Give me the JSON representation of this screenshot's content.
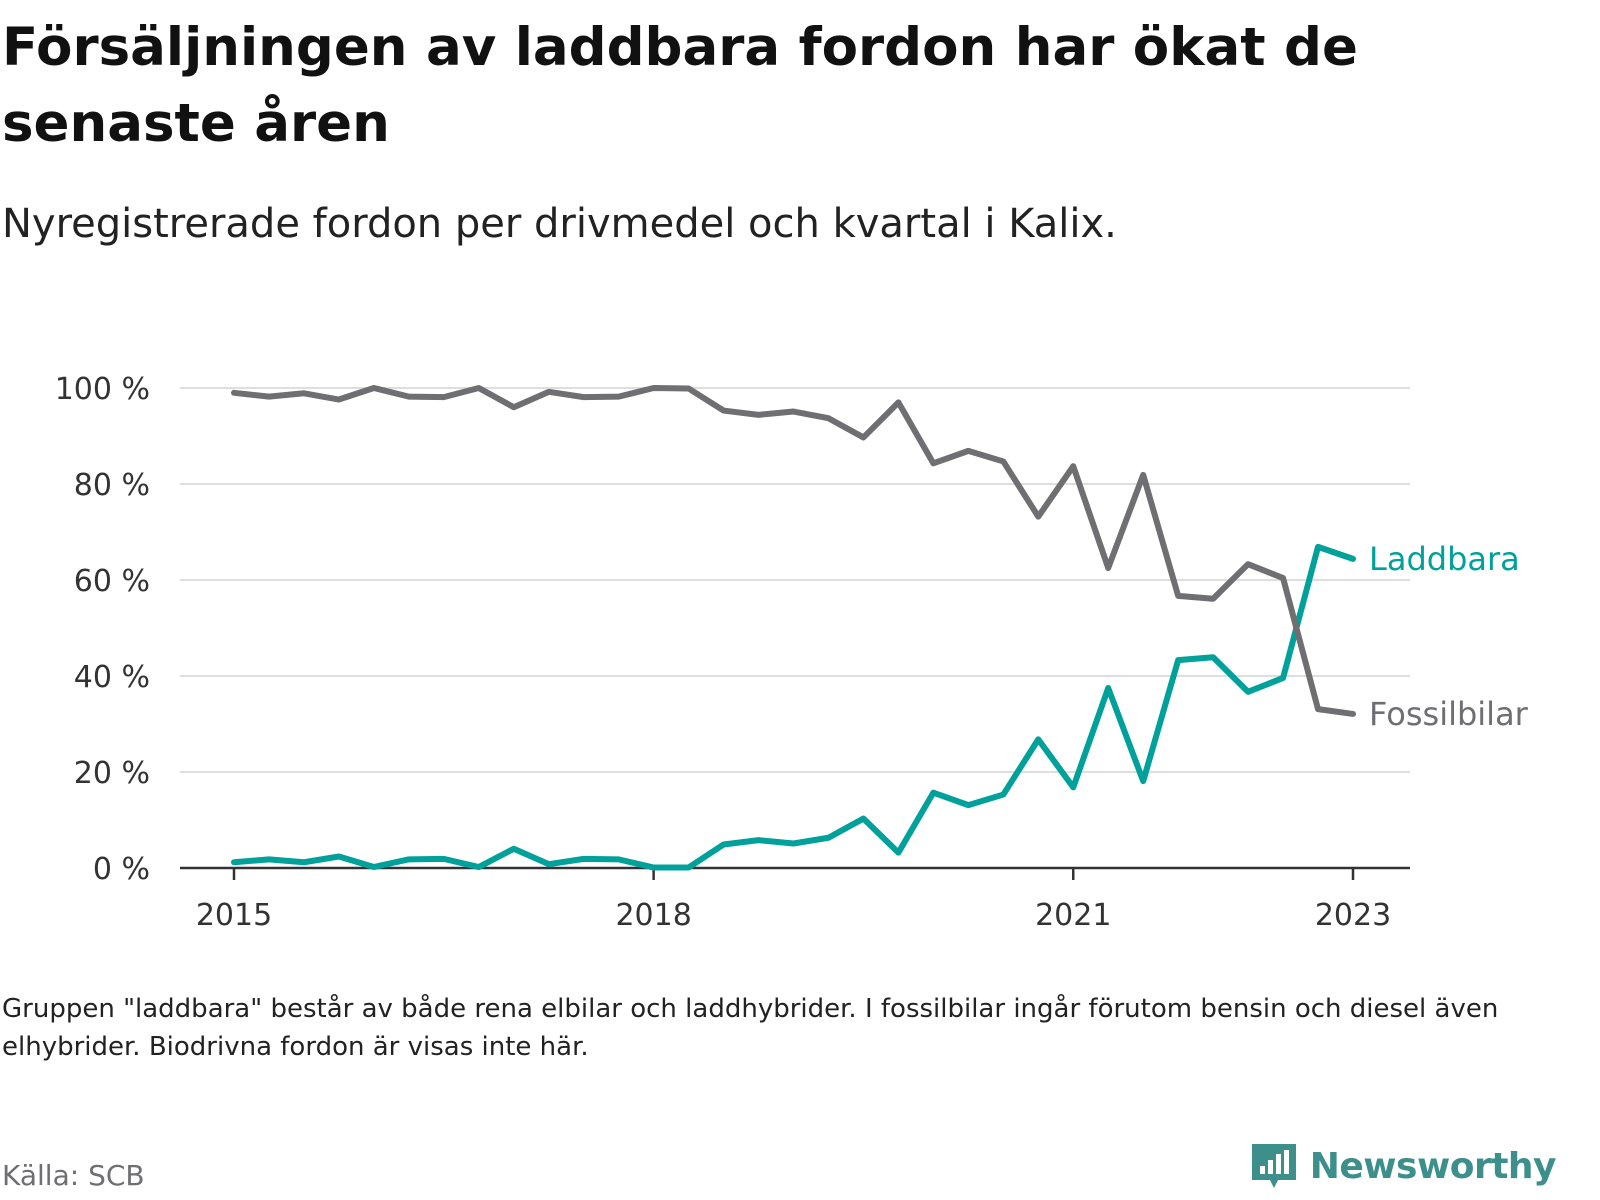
{
  "title": "Försäljningen av laddbara fordon har ökat de senaste åren",
  "subtitle": "Nyregistrerade fordon per drivmedel och kvartal i Kalix.",
  "note": "Gruppen \"laddbara\" består av både rena elbilar och laddhybrider. I fossilbilar ingår förutom bensin och diesel även elhybrider. Biodrivna fordon är visas inte här.",
  "source": "Källa: SCB",
  "brand": {
    "name": "Newsworthy",
    "icon": "newsworthy-logo-icon",
    "color": "#3d8f8b"
  },
  "chart_data": {
    "type": "line",
    "x_label_positions": [
      2015,
      2018,
      2021,
      2023
    ],
    "x_ticks": [
      "2015",
      "2018",
      "2021",
      "2023"
    ],
    "y_ticks": [
      "0 %",
      "20 %",
      "40 %",
      "60 %",
      "80 %",
      "100 %"
    ],
    "ylim": [
      0,
      100
    ],
    "grid": true,
    "legend": "direct-labels-right",
    "x": [
      2015.0,
      2015.25,
      2015.5,
      2015.75,
      2016.0,
      2016.25,
      2016.5,
      2016.75,
      2017.0,
      2017.25,
      2017.5,
      2017.75,
      2018.0,
      2018.25,
      2018.5,
      2018.75,
      2019.0,
      2019.25,
      2019.5,
      2019.75,
      2020.0,
      2020.25,
      2020.5,
      2020.75,
      2021.0,
      2021.25,
      2021.5,
      2021.75,
      2022.0,
      2022.25,
      2022.5,
      2022.75,
      2023.0
    ],
    "series": [
      {
        "name": "Laddbara",
        "color": "#00a19a",
        "values": [
          1.2,
          1.8,
          1.2,
          2.4,
          0.2,
          1.8,
          1.9,
          0.2,
          4.0,
          0.8,
          1.9,
          1.8,
          0.1,
          0.1,
          4.9,
          5.8,
          5.1,
          6.3,
          10.3,
          3.2,
          15.7,
          13.1,
          15.3,
          26.8,
          16.8,
          37.5,
          18.1,
          43.3,
          43.9,
          36.7,
          39.6,
          66.9,
          64.4
        ]
      },
      {
        "name": "Fossilbilar",
        "color": "#6e6e73",
        "values": [
          99.0,
          98.2,
          98.9,
          97.6,
          100.0,
          98.2,
          98.1,
          100.0,
          96.0,
          99.2,
          98.1,
          98.2,
          100.0,
          99.9,
          95.3,
          94.4,
          95.1,
          93.7,
          89.7,
          97.0,
          84.3,
          86.9,
          84.7,
          73.2,
          83.7,
          62.5,
          81.9,
          56.7,
          56.1,
          63.3,
          60.4,
          33.1,
          32.1
        ]
      }
    ]
  }
}
